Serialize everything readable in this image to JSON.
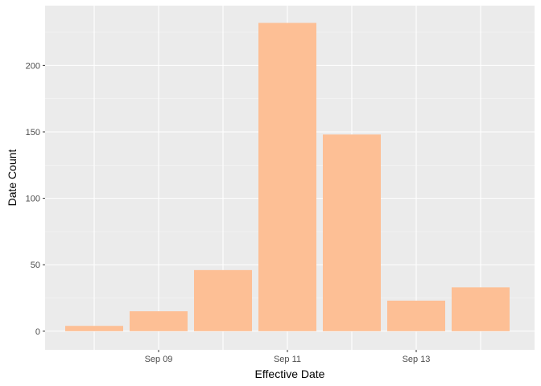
{
  "chart_data": {
    "type": "bar",
    "categories": [
      "Sep 08",
      "Sep 09",
      "Sep 10",
      "Sep 11",
      "Sep 12",
      "Sep 13",
      "Sep 14"
    ],
    "values": [
      4,
      15,
      46,
      232,
      148,
      23,
      33
    ],
    "xlabel": "Effective Date",
    "ylabel": "Date Count",
    "ylim": [
      -14,
      245
    ],
    "y_ticks": [
      0,
      50,
      100,
      150,
      200
    ],
    "x_ticks": [
      "Sep 09",
      "Sep 11",
      "Sep 13"
    ],
    "grid": true,
    "colors": {
      "bar": "#FDBF95",
      "panel_background": "#EBEBEB",
      "grid_major": "#FFFFFF",
      "grid_minor": "#F5F5F5",
      "tick_text": "#4D4D4D",
      "axis_ticks": "#333333"
    }
  }
}
